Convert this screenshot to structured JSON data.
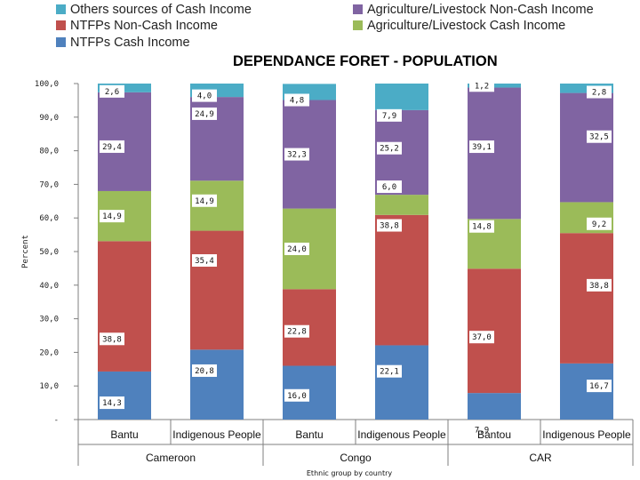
{
  "chart_data": {
    "type": "bar",
    "stacked": true,
    "title": "DEPENDANCE FORET - POPULATION",
    "ylabel": "Percent",
    "xlabel": "Ethnic group by country",
    "ylim": [
      0,
      100
    ],
    "yticks": [
      "-",
      "10,0",
      "20,0",
      "30,0",
      "40,0",
      "50,0",
      "60,0",
      "70,0",
      "80,0",
      "90,0",
      "100,0"
    ],
    "categories": [
      "Bantu",
      "Indigenous People",
      "Bantu",
      "Indigenous People",
      "Bantou",
      "Indigenous People"
    ],
    "groups": [
      "Cameroon",
      "Congo",
      "CAR"
    ],
    "legend_position": "top",
    "legend_order": [
      4,
      3,
      1,
      2,
      0
    ],
    "series": [
      {
        "name": "NTFPs Cash Income",
        "color": "#4f81bd",
        "values": [
          14.3,
          20.8,
          16.0,
          22.1,
          7.9,
          16.7
        ],
        "labels": [
          "14,3",
          "20,8",
          "16,0",
          "22,1",
          "7,9",
          "16,7"
        ]
      },
      {
        "name": "NTFPs Non-Cash Income",
        "color": "#c0504d",
        "values": [
          38.8,
          35.4,
          22.8,
          38.8,
          37.0,
          38.8
        ],
        "labels": [
          "38,8",
          "35,4",
          "22,8",
          "38,8",
          "37,0",
          "38,8"
        ]
      },
      {
        "name": "Agriculture/Livestock Cash  Income",
        "color": "#9bbb59",
        "values": [
          14.9,
          14.9,
          24.0,
          6.0,
          14.8,
          9.2
        ],
        "labels": [
          "14,9",
          "14,9",
          "24,0",
          "6,0",
          "14,8",
          "9,2"
        ]
      },
      {
        "name": "Agriculture/Livestock Non-Cash  Income",
        "color": "#8064a2",
        "values": [
          29.4,
          24.9,
          32.3,
          25.2,
          39.1,
          32.5
        ],
        "labels": [
          "29,4",
          "24,9",
          "32,3",
          "25,2",
          "39,1",
          "32,5"
        ]
      },
      {
        "name": "Others sources of Cash Income",
        "color": "#4bacc6",
        "values": [
          2.6,
          4.0,
          4.8,
          7.9,
          1.2,
          2.8
        ],
        "labels": [
          "2,6",
          "4,0",
          "4,8",
          "7,9",
          "1,2",
          "2,8"
        ]
      }
    ]
  }
}
